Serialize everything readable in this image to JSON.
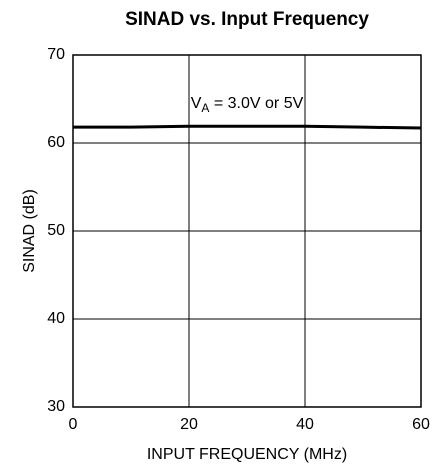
{
  "chart_data": {
    "type": "line",
    "title": "SINAD vs. Input Frequency",
    "xlabel": "INPUT FREQUENCY (MHz)",
    "ylabel": "SINAD (dB)",
    "annotation": {
      "base": "V",
      "sub": "A",
      "rest": " = 3.0V or 5V"
    },
    "x": [
      0,
      10,
      20,
      30,
      40,
      50,
      60
    ],
    "series": [
      {
        "name": "SINAD",
        "color": "#000000",
        "values": [
          61.8,
          61.8,
          61.9,
          61.9,
          61.9,
          61.8,
          61.7
        ]
      }
    ],
    "xlim": [
      0,
      60
    ],
    "xticks": [
      0,
      20,
      40,
      60
    ],
    "ylim": [
      30,
      70
    ],
    "yticks": [
      30,
      40,
      50,
      60,
      70
    ],
    "grid": true
  }
}
